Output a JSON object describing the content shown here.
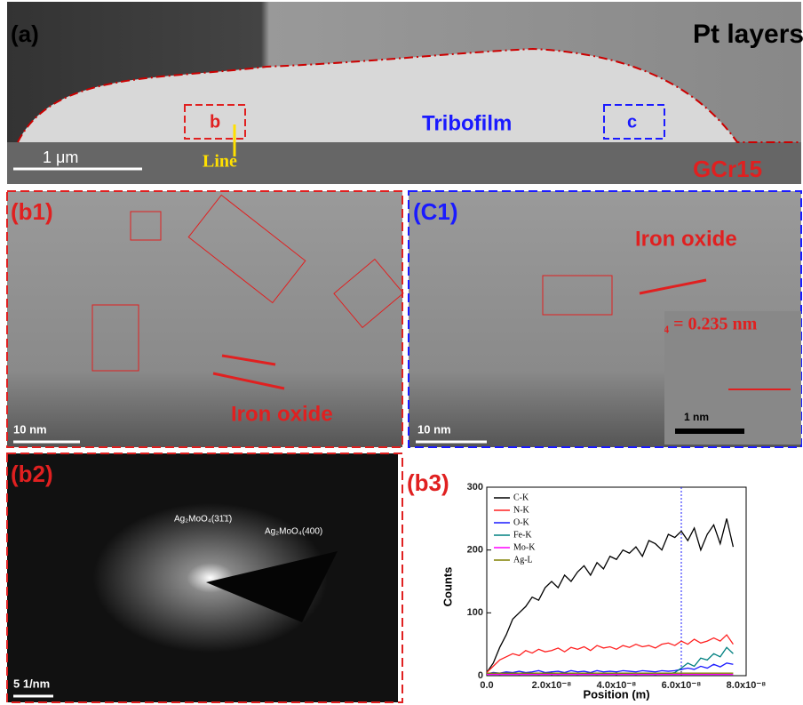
{
  "panel_a": {
    "label": "(a)",
    "pt": "Pt layers",
    "tribofilm": "Tribofilm",
    "substrate": "GCr15",
    "line": "Line",
    "box_b": "b",
    "box_c": "c",
    "scale_bar": "1 μm"
  },
  "panel_b1": {
    "label": "(b1)",
    "annotation": "Iron oxide",
    "scale_bar": "10 nm"
  },
  "panel_c1": {
    "label": "(C1)",
    "annotation": "Iron oxide",
    "spacing": "d₄ = 0.235 nm",
    "scale_bar": "10 nm",
    "inset_scale": "1 nm"
  },
  "panel_b2": {
    "label": "(b2)",
    "spot_1": "Ag₂MoO₄(31̄1̄)",
    "spot_2": "Ag₂MoO₄(400)",
    "scale_bar": "5 1/nm"
  },
  "panel_b3": {
    "label": "(b3)",
    "chart_data": {
      "type": "line",
      "x_label": "Position (m)",
      "y_label": "Counts",
      "xlim": [
        0,
        8e-08
      ],
      "xticks": [
        {
          "value": 0,
          "label": "0.0"
        },
        {
          "value": 2e-08,
          "label": "2.0x10⁻⁸"
        },
        {
          "value": 4e-08,
          "label": "4.0x10⁻⁸"
        },
        {
          "value": 6e-08,
          "label": "6.0x10⁻⁸"
        },
        {
          "value": 8e-08,
          "label": "8.0x10⁻⁸"
        }
      ],
      "ylim": [
        0,
        300
      ],
      "yticks": [
        0,
        100,
        200,
        300
      ],
      "vline": 6e-08,
      "legend": "top-left",
      "x": [
        0,
        2e-09,
        4e-09,
        6e-09,
        8e-09,
        1e-08,
        1.2e-08,
        1.4e-08,
        1.6e-08,
        1.8e-08,
        2e-08,
        2.2e-08,
        2.4e-08,
        2.6e-08,
        2.8e-08,
        3e-08,
        3.2e-08,
        3.4e-08,
        3.6e-08,
        3.8e-08,
        4e-08,
        4.2e-08,
        4.4e-08,
        4.6e-08,
        4.8e-08,
        5e-08,
        5.2e-08,
        5.4e-08,
        5.6e-08,
        5.8e-08,
        6e-08,
        6.2e-08,
        6.4e-08,
        6.6e-08,
        6.8e-08,
        7e-08,
        7.2e-08,
        7.4e-08,
        7.6e-08
      ],
      "series": [
        {
          "name": "C-K",
          "color": "#000000",
          "values": [
            5,
            20,
            45,
            65,
            90,
            100,
            110,
            125,
            120,
            140,
            150,
            140,
            160,
            150,
            165,
            175,
            160,
            180,
            170,
            190,
            185,
            200,
            195,
            205,
            190,
            215,
            210,
            200,
            225,
            220,
            230,
            215,
            235,
            200,
            225,
            240,
            210,
            250,
            205
          ]
        },
        {
          "name": "N-K",
          "color": "#ff2020",
          "values": [
            5,
            15,
            25,
            30,
            35,
            32,
            40,
            36,
            42,
            38,
            40,
            44,
            38,
            45,
            42,
            46,
            40,
            48,
            44,
            46,
            42,
            48,
            45,
            50,
            46,
            48,
            44,
            50,
            52,
            48,
            55,
            50,
            58,
            52,
            55,
            60,
            55,
            65,
            50
          ]
        },
        {
          "name": "O-K",
          "color": "#1a1aff",
          "values": [
            3,
            5,
            4,
            6,
            5,
            7,
            5,
            6,
            8,
            5,
            6,
            7,
            5,
            8,
            6,
            7,
            5,
            8,
            6,
            7,
            6,
            8,
            7,
            6,
            8,
            7,
            6,
            8,
            7,
            8,
            10,
            12,
            10,
            15,
            12,
            18,
            14,
            20,
            18
          ]
        },
        {
          "name": "Fe-K",
          "color": "#008080",
          "values": [
            3,
            3,
            2,
            3,
            3,
            2,
            3,
            3,
            2,
            3,
            3,
            2,
            3,
            3,
            2,
            3,
            3,
            2,
            3,
            3,
            2,
            3,
            3,
            2,
            3,
            3,
            2,
            3,
            3,
            5,
            12,
            20,
            15,
            28,
            25,
            35,
            30,
            45,
            35
          ]
        },
        {
          "name": "Mo-K",
          "color": "#ff00ff",
          "values": [
            2,
            2,
            2,
            2,
            2,
            2,
            2,
            2,
            2,
            2,
            2,
            2,
            2,
            2,
            2,
            2,
            2,
            2,
            2,
            2,
            2,
            2,
            2,
            2,
            2,
            2,
            2,
            2,
            2,
            2,
            2,
            2,
            2,
            2,
            2,
            2,
            2,
            2,
            2
          ]
        },
        {
          "name": "Ag-L",
          "color": "#808000",
          "values": [
            4,
            4,
            4,
            4,
            4,
            4,
            4,
            4,
            4,
            4,
            4,
            4,
            4,
            4,
            4,
            4,
            4,
            4,
            4,
            4,
            4,
            4,
            4,
            4,
            4,
            4,
            4,
            4,
            4,
            4,
            4,
            4,
            4,
            4,
            4,
            4,
            4,
            4,
            4
          ]
        }
      ]
    }
  }
}
